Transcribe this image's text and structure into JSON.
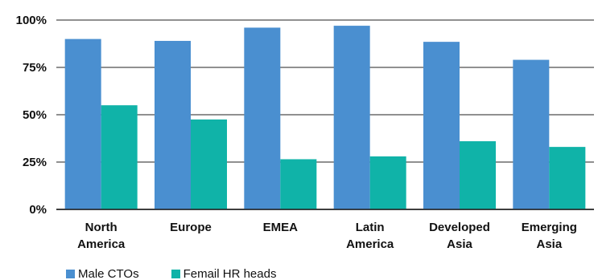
{
  "chart_data": {
    "type": "bar",
    "categories": [
      [
        "North",
        "America"
      ],
      [
        "Europe"
      ],
      [
        "EMEA"
      ],
      [
        "Latin",
        "America"
      ],
      [
        "Developed",
        "Asia"
      ],
      [
        "Emerging",
        "Asia"
      ]
    ],
    "series": [
      {
        "name": "Male CTOs",
        "color": "#4a8fd0",
        "values": [
          90,
          89,
          96,
          97,
          88.5,
          79
        ]
      },
      {
        "name": "Femail HR heads",
        "color": "#10b3a8",
        "values": [
          55,
          47.5,
          26.5,
          28,
          36,
          33
        ]
      }
    ],
    "ylim": [
      0,
      100
    ],
    "yticks": [
      0,
      25,
      50,
      75,
      100
    ],
    "ytick_labels": [
      "0%",
      "25%",
      "50%",
      "75%",
      "100%"
    ],
    "grid": true,
    "legend_position": "bottom-left"
  }
}
